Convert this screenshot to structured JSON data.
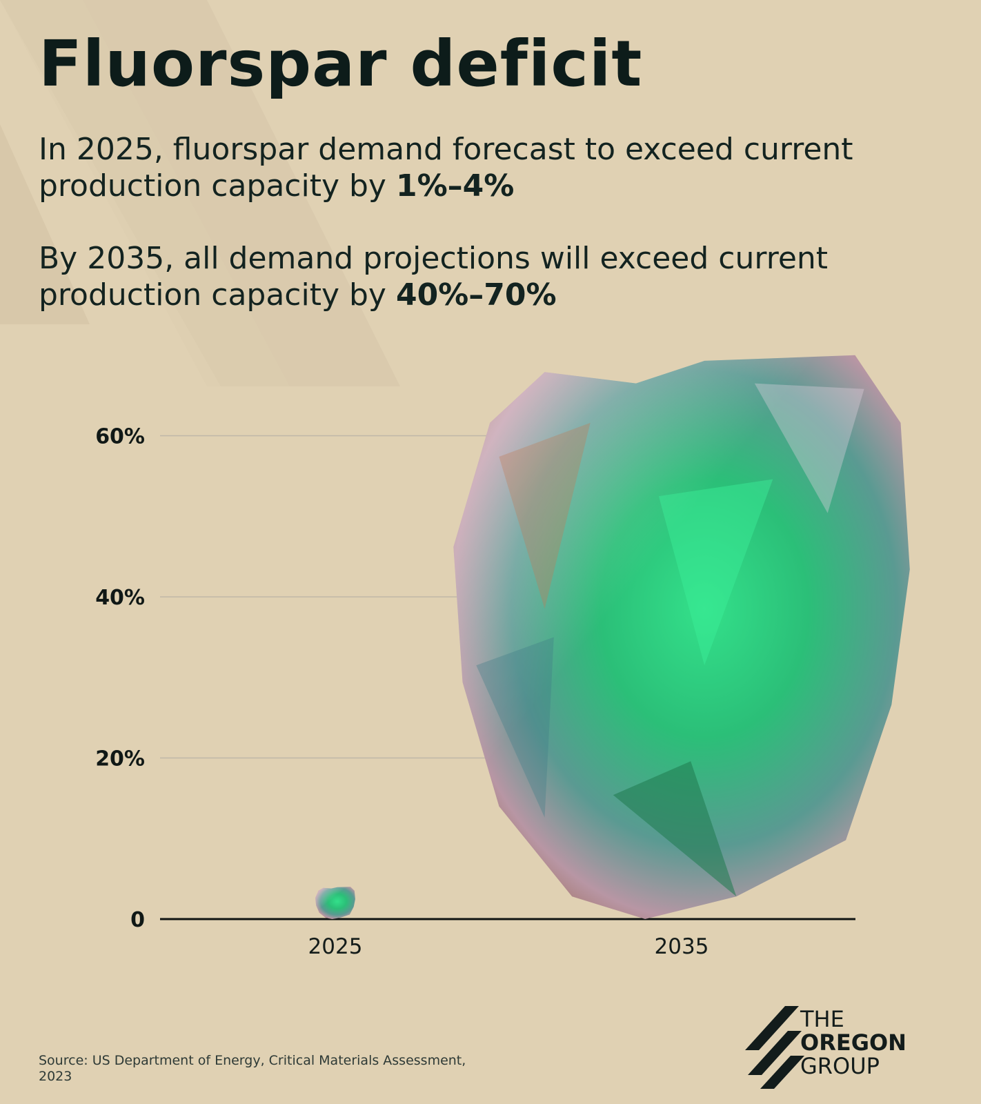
{
  "title": "Fluorspar deficit",
  "paragraphs": [
    {
      "text": "In 2025, fluorspar demand forecast to exceed current production capacity by ",
      "bold": "1%–4%"
    },
    {
      "text": "By 2035, all demand projections will exceed current production capacity by ",
      "bold": "40%–70%"
    }
  ],
  "chart_data": {
    "type": "bar",
    "categories": [
      "2025",
      "2035"
    ],
    "values": [
      4,
      70
    ],
    "ranges": [
      [
        1,
        4
      ],
      [
        40,
        70
      ]
    ],
    "yticks": [
      {
        "value": 0,
        "label": "0"
      },
      {
        "value": 20,
        "label": "20%"
      },
      {
        "value": 40,
        "label": "40%"
      },
      {
        "value": 60,
        "label": "60%"
      }
    ],
    "ylim": [
      0,
      70
    ],
    "grid": true,
    "mark": "fluorspar-rock"
  },
  "source": "Source: US Department of Energy, Critical Materials Assessment, 2023",
  "logo": {
    "line1": "THE",
    "line2": "OREGON",
    "line3": "GROUP"
  },
  "colors": {
    "background": "#e0d1b3",
    "text": "#0f1d1b",
    "rock_green": "#2bcf77",
    "rock_teal": "#5a9a92",
    "rock_pink": "#c9a6b2",
    "rock_orange": "#b5704a"
  }
}
